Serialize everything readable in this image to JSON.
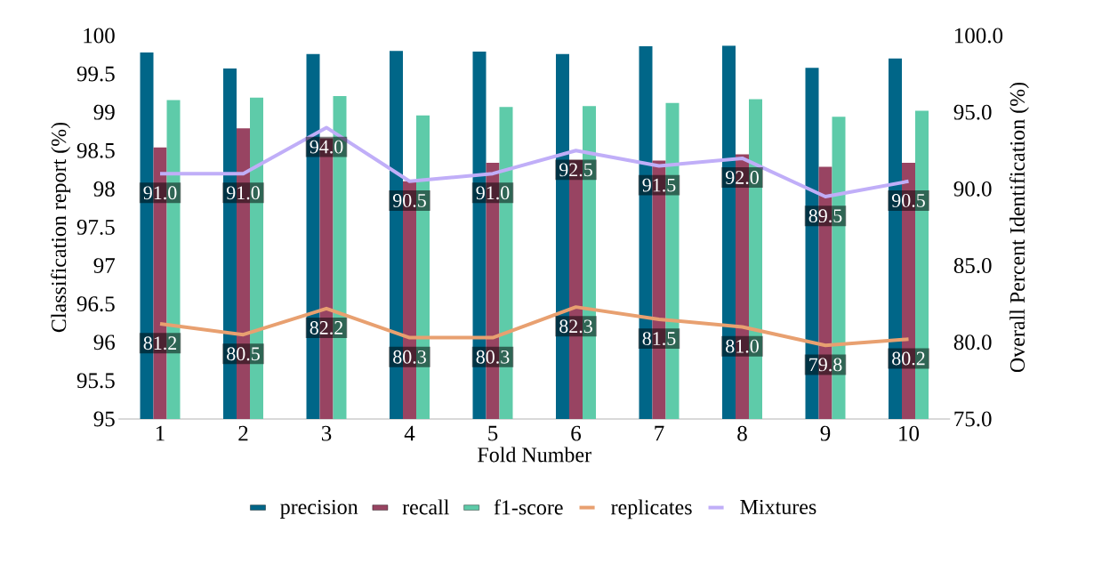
{
  "chart_data": {
    "type": "bar",
    "xlabel": "Fold Number",
    "ylabel": "Classification report (%)",
    "y2label": "Overall Percent Identification (%)",
    "categories": [
      "1",
      "2",
      "3",
      "4",
      "5",
      "6",
      "7",
      "8",
      "9",
      "10"
    ],
    "series": [
      {
        "name": "precision",
        "color": "#006688",
        "values": [
          99.78,
          99.57,
          99.76,
          99.8,
          99.79,
          99.76,
          99.86,
          99.87,
          99.58,
          99.7
        ]
      },
      {
        "name": "recall",
        "color": "#984462",
        "values": [
          98.54,
          98.79,
          98.66,
          98.1,
          98.34,
          98.38,
          98.37,
          98.45,
          98.29,
          98.34
        ]
      },
      {
        "name": "f1-score",
        "color": "#5ecba9",
        "values": [
          99.16,
          99.19,
          99.21,
          98.96,
          99.07,
          99.08,
          99.12,
          99.17,
          98.94,
          99.02
        ]
      },
      {
        "name": "replicates",
        "type": "line",
        "axis": "y2",
        "color": "#e8a070",
        "values": [
          81.2,
          80.5,
          82.2,
          80.3,
          80.3,
          82.3,
          81.5,
          81.0,
          79.8,
          80.2
        ],
        "value_labels": [
          "81.2",
          "80.5",
          "82.2",
          "80.3",
          "80.3",
          "82.3",
          "81.5",
          "81.0",
          "79.8",
          "80.2"
        ]
      },
      {
        "name": "Mixtures",
        "type": "line",
        "axis": "y2",
        "color": "#c0aef8",
        "values": [
          91.0,
          91.0,
          94.0,
          90.5,
          91.0,
          92.5,
          91.5,
          92.0,
          89.5,
          90.5
        ],
        "value_labels": [
          "91.0",
          "91.0",
          "94.0",
          "90.5",
          "91.0",
          "92.5",
          "91.5",
          "92.0",
          "89.5",
          "90.5"
        ]
      }
    ],
    "ylim": [
      95,
      100
    ],
    "yticks": [
      95,
      95.5,
      96,
      96.5,
      97,
      97.5,
      98,
      98.5,
      99,
      99.5,
      100
    ],
    "y2lim": [
      75,
      100
    ],
    "y2ticks": [
      {
        "value": 75,
        "label": "75.0"
      },
      {
        "value": 80,
        "label": "80.0"
      },
      {
        "value": 85,
        "label": "85.0"
      },
      {
        "value": 90,
        "label": "90.0"
      },
      {
        "value": 95,
        "label": "95.0"
      },
      {
        "value": 100,
        "label": "100.0"
      }
    ],
    "legend": "bottom",
    "marker": "none",
    "line_style": "solid"
  }
}
